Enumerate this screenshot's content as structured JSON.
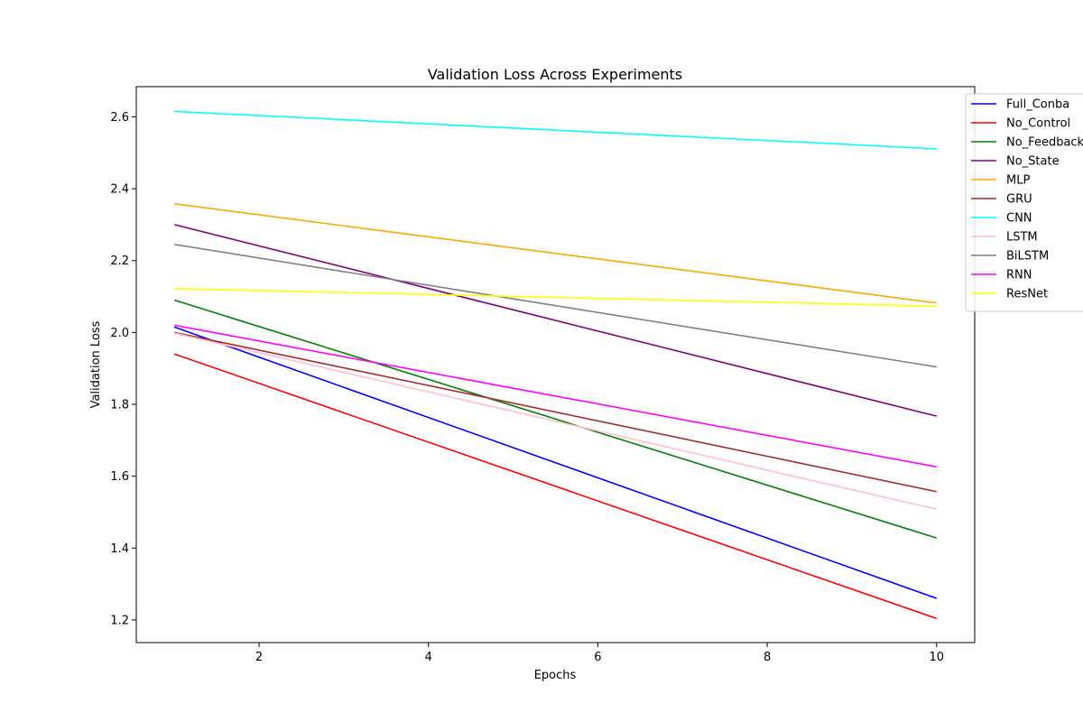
{
  "chart_data": {
    "type": "line",
    "title": "Validation Loss Across Experiments",
    "xlabel": "Epochs",
    "ylabel": "Validation Loss",
    "xlim": [
      0.55,
      10.45
    ],
    "ylim": [
      1.137,
      2.684
    ],
    "x_ticks": [
      2,
      4,
      6,
      8,
      10
    ],
    "y_ticks": [
      1.2,
      1.4,
      1.6,
      1.8,
      2.0,
      2.2,
      2.4,
      2.6
    ],
    "grid": false,
    "legend_placement": "outside-top-right",
    "series": [
      {
        "name": "Full_Conba",
        "color": "#0000ff",
        "x": [
          1,
          10
        ],
        "y": [
          2.015,
          1.26
        ]
      },
      {
        "name": "No_Control",
        "color": "#ff0000",
        "x": [
          1,
          10
        ],
        "y": [
          1.94,
          1.204
        ]
      },
      {
        "name": "No_Feedback",
        "color": "#008000",
        "x": [
          1,
          10
        ],
        "y": [
          2.09,
          1.428
        ]
      },
      {
        "name": "No_State",
        "color": "#800080",
        "x": [
          1,
          10
        ],
        "y": [
          2.3,
          1.767
        ]
      },
      {
        "name": "MLP",
        "color": "#ffa500",
        "x": [
          1,
          10
        ],
        "y": [
          2.358,
          2.082
        ]
      },
      {
        "name": "GRU",
        "color": "#a52a2a",
        "x": [
          1,
          10
        ],
        "y": [
          2.0,
          1.557
        ]
      },
      {
        "name": "CNN",
        "color": "#00ffff",
        "x": [
          1,
          10
        ],
        "y": [
          2.615,
          2.511
        ]
      },
      {
        "name": "LSTM",
        "color": "#ffc0cb",
        "x": [
          1,
          10
        ],
        "y": [
          1.998,
          1.508
        ]
      },
      {
        "name": "BiLSTM",
        "color": "#808080",
        "x": [
          1,
          10
        ],
        "y": [
          2.245,
          1.904
        ]
      },
      {
        "name": "RNN",
        "color": "#ff00ff",
        "x": [
          1,
          10
        ],
        "y": [
          2.02,
          1.626
        ]
      },
      {
        "name": "ResNet",
        "color": "#ffff00",
        "x": [
          1,
          10
        ],
        "y": [
          2.122,
          2.073
        ]
      }
    ]
  }
}
